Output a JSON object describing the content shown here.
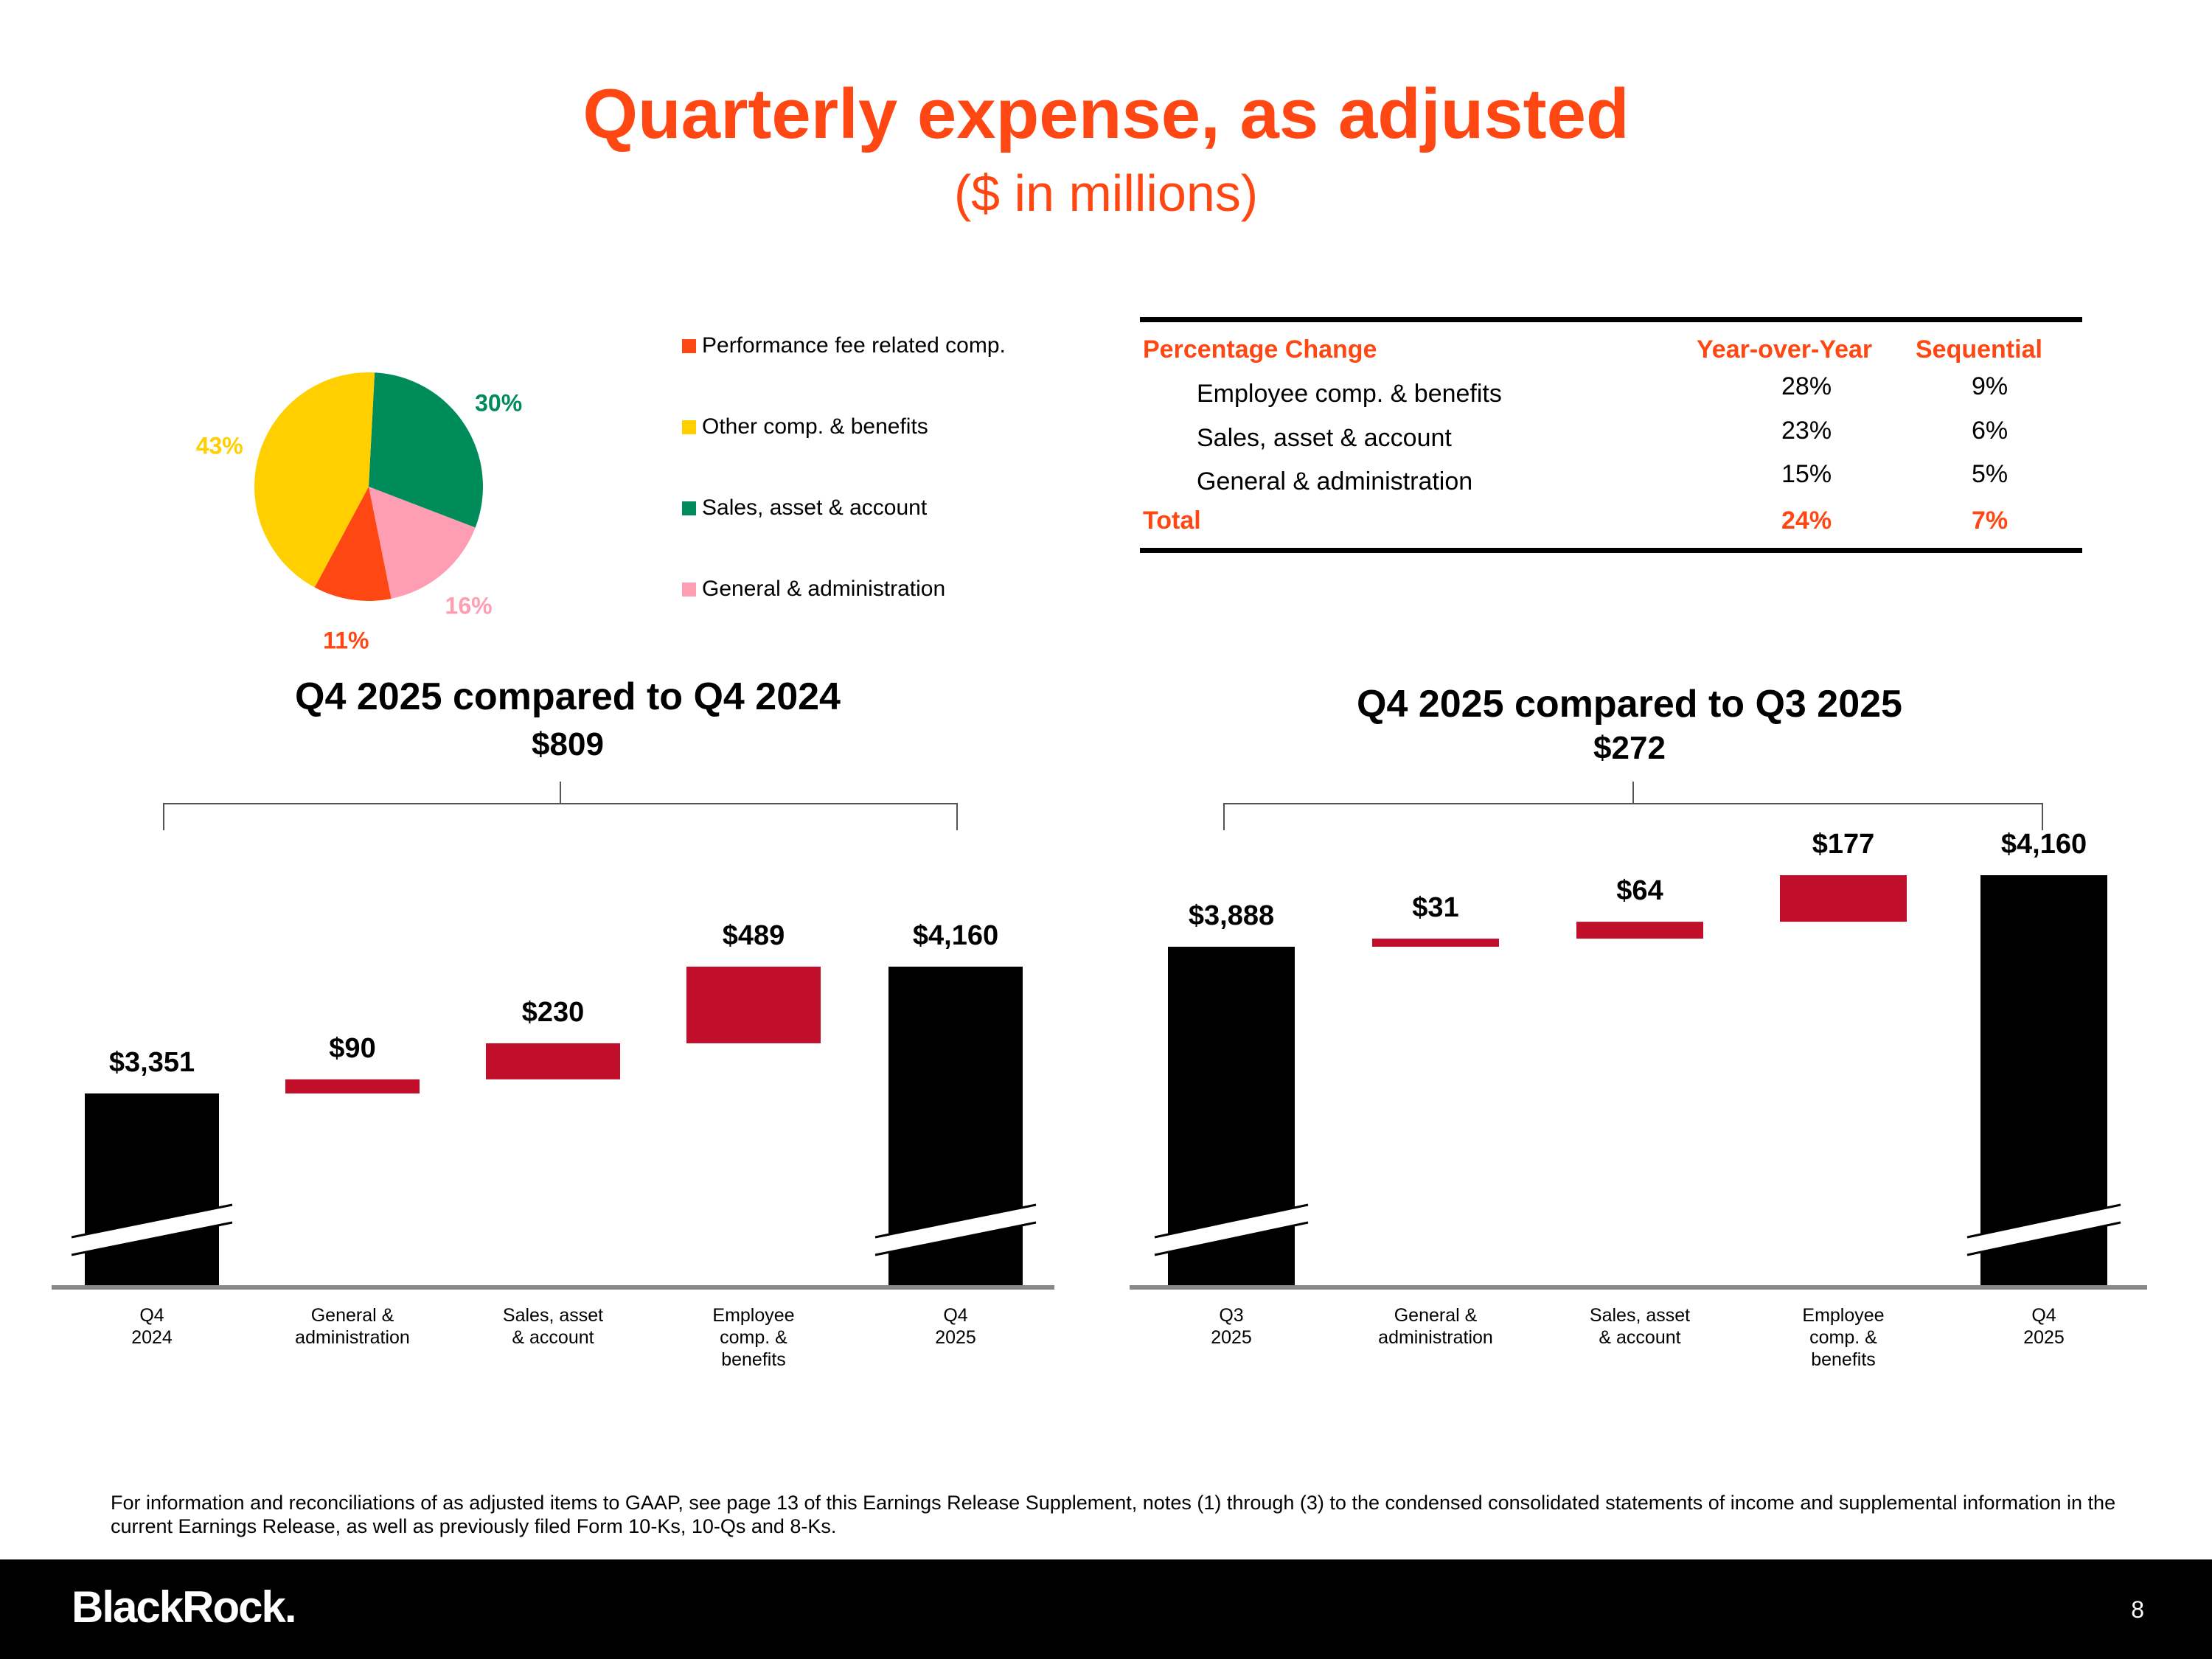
{
  "header": {
    "title": "Quarterly expense, as adjusted",
    "subtitle": "($ in millions)"
  },
  "colors": {
    "accent": "#ff4713",
    "bar_total": "#000000",
    "bar_delta": "#c10f2b",
    "performance_fee": "#ff4713",
    "other_comp": "#ffcf00",
    "sales_asset": "#008c5a",
    "general_admin": "#ff9eb3"
  },
  "chart_data": [
    {
      "type": "pie",
      "title": "",
      "slices": [
        {
          "label": "Performance fee related comp.",
          "value": 11,
          "label_text": "11%",
          "color": "#ff4713"
        },
        {
          "label": "Other comp. & benefits",
          "value": 43,
          "label_text": "43%",
          "color": "#ffcf00"
        },
        {
          "label": "Sales, asset & account",
          "value": 30,
          "label_text": "30%",
          "color": "#008c5a"
        },
        {
          "label": "General & administration",
          "value": 16,
          "label_text": "16%",
          "color": "#ff9eb3"
        }
      ]
    },
    {
      "type": "bar",
      "subtype": "waterfall",
      "title": "Q4 2025 compared to Q4 2024",
      "total_change_label": "$809",
      "categories": [
        "Q4\n2024",
        "General &\nadministration",
        "Sales, asset\n& account",
        "Employee\ncomp. &\nbenefits",
        "Q4\n2025"
      ],
      "values": [
        3351,
        90,
        230,
        489,
        4160
      ],
      "kinds": [
        "total",
        "delta",
        "delta",
        "delta",
        "total"
      ],
      "value_labels": [
        "$3,351",
        "$90",
        "$230",
        "$489",
        "$4,160"
      ],
      "axis_break": true
    },
    {
      "type": "bar",
      "subtype": "waterfall",
      "title": "Q4 2025 compared to Q3 2025",
      "total_change_label": "$272",
      "categories": [
        "Q3\n2025",
        "General &\nadministration",
        "Sales, asset\n& account",
        "Employee\ncomp. &\nbenefits",
        "Q4\n2025"
      ],
      "values": [
        3888,
        31,
        64,
        177,
        4160
      ],
      "kinds": [
        "total",
        "delta",
        "delta",
        "delta",
        "total"
      ],
      "value_labels": [
        "$3,888",
        "$31",
        "$64",
        "$177",
        "$4,160"
      ],
      "axis_break": true
    }
  ],
  "legend": {
    "items": [
      {
        "label": "Performance fee related comp.",
        "color": "#ff4713"
      },
      {
        "label": "Other comp. & benefits",
        "color": "#ffcf00"
      },
      {
        "label": "Sales, asset & account",
        "color": "#008c5a"
      },
      {
        "label": "General & administration",
        "color": "#ff9eb3"
      }
    ]
  },
  "pct_table": {
    "headers": {
      "label": "Percentage Change",
      "yoy": "Year-over-Year",
      "seq": "Sequential"
    },
    "rows": [
      {
        "label": "Employee comp. & benefits",
        "yoy": "28%",
        "seq": "9%"
      },
      {
        "label": "Sales, asset & account",
        "yoy": "23%",
        "seq": "6%"
      },
      {
        "label": "General & administration",
        "yoy": "15%",
        "seq": "5%"
      }
    ],
    "total": {
      "label": "Total",
      "yoy": "24%",
      "seq": "7%"
    }
  },
  "footnote": "For information and reconciliations of as adjusted items to GAAP, see page 13 of this Earnings Release Supplement, notes (1) through (3) to the condensed consolidated statements of income and supplemental information in the current Earnings Release, as well as previously filed Form 10-Ks, 10-Qs and 8-Ks.",
  "footer": {
    "logo": "BlackRock.",
    "page_number": "8"
  }
}
